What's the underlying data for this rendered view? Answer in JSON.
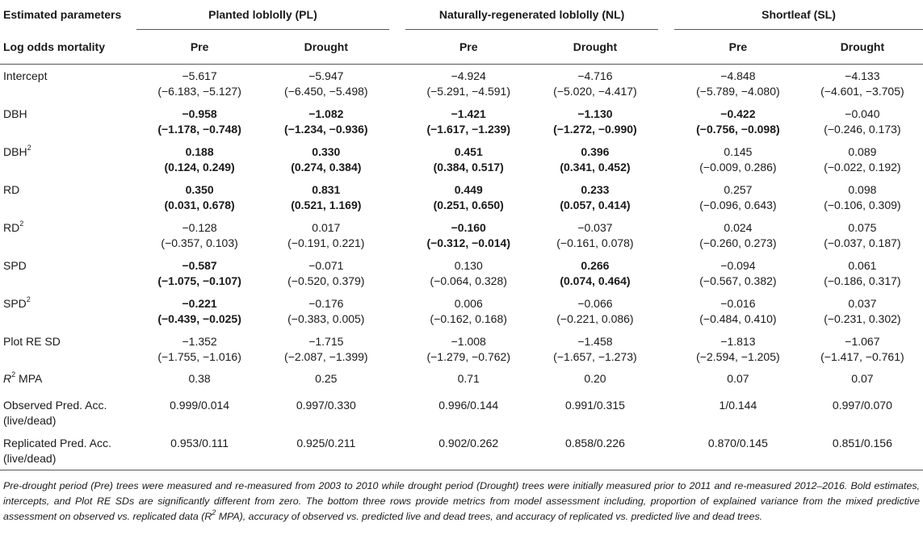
{
  "header": {
    "col0_top": "Estimated parameters",
    "col0_sub": "Log odds mortality",
    "groups": [
      {
        "label": "Planted loblolly (PL)"
      },
      {
        "label": "Naturally-regenerated loblolly (NL)"
      },
      {
        "label": "Shortleaf (SL)"
      }
    ],
    "periods": [
      "Pre",
      "Drought",
      "Pre",
      "Drought",
      "Pre",
      "Drought"
    ]
  },
  "rows": [
    {
      "label": "Intercept",
      "sup": "",
      "cells": [
        {
          "v": "−5.617",
          "ci": "(−6.183, −5.127)"
        },
        {
          "v": "−5.947",
          "ci": "(−6.450, −5.498)"
        },
        {
          "v": "−4.924",
          "ci": "(−5.291, −4.591)"
        },
        {
          "v": "−4.716",
          "ci": "(−5.020, −4.417)"
        },
        {
          "v": "−4.848",
          "ci": "(−5.789, −4.080)"
        },
        {
          "v": "−4.133",
          "ci": "(−4.601, −3.705)"
        }
      ]
    },
    {
      "label": "DBH",
      "sup": "",
      "cells": [
        {
          "v": "−0.958",
          "ci": "(−1.178, −0.748)"
        },
        {
          "v": "−1.082",
          "ci": "(−1.234, −0.936)"
        },
        {
          "v": "−1.421",
          "ci": "(−1.617, −1.239)"
        },
        {
          "v": "−1.130",
          "ci": "(−1.272, −0.990)"
        },
        {
          "v": "−0.422",
          "ci": "(−0.756, −0.098)"
        },
        {
          "v": "−0.040",
          "ci": "(−0.246, 0.173)"
        }
      ]
    },
    {
      "label": "DBH",
      "sup": "2",
      "cells": [
        {
          "v": "0.188",
          "ci": "(0.124, 0.249)"
        },
        {
          "v": "0.330",
          "ci": "(0.274, 0.384)"
        },
        {
          "v": "0.451",
          "ci": "(0.384, 0.517)"
        },
        {
          "v": "0.396",
          "ci": "(0.341, 0.452)"
        },
        {
          "v": "0.145",
          "ci": "(−0.009, 0.286)"
        },
        {
          "v": "0.089",
          "ci": "(−0.022, 0.192)"
        }
      ]
    },
    {
      "label": "RD",
      "sup": "",
      "cells": [
        {
          "v": "0.350",
          "ci": "(0.031, 0.678)"
        },
        {
          "v": "0.831",
          "ci": "(0.521, 1.169)"
        },
        {
          "v": "0.449",
          "ci": "(0.251, 0.650)"
        },
        {
          "v": "0.233",
          "ci": "(0.057, 0.414)"
        },
        {
          "v": "0.257",
          "ci": "(−0.096, 0.643)"
        },
        {
          "v": "0.098",
          "ci": "(−0.106, 0.309)"
        }
      ]
    },
    {
      "label": "RD",
      "sup": "2",
      "cells": [
        {
          "v": "−0.128",
          "ci": "(−0.357, 0.103)"
        },
        {
          "v": "0.017",
          "ci": "(−0.191, 0.221)"
        },
        {
          "v": "−0.160",
          "ci": "(−0.312, −0.014)"
        },
        {
          "v": "−0.037",
          "ci": "(−0.161, 0.078)"
        },
        {
          "v": "0.024",
          "ci": "(−0.260, 0.273)"
        },
        {
          "v": "0.075",
          "ci": "(−0.037, 0.187)"
        }
      ]
    },
    {
      "label": "SPD",
      "sup": "",
      "cells": [
        {
          "v": "−0.587",
          "ci": "(−1.075, −0.107)"
        },
        {
          "v": "−0.071",
          "ci": "(−0.520, 0.379)"
        },
        {
          "v": "0.130",
          "ci": "(−0.064, 0.328)"
        },
        {
          "v": "0.266",
          "ci": "(0.074, 0.464)"
        },
        {
          "v": "−0.094",
          "ci": "(−0.567, 0.382)"
        },
        {
          "v": "0.061",
          "ci": "(−0.186, 0.317)"
        }
      ]
    },
    {
      "label": "SPD",
      "sup": "2",
      "cells": [
        {
          "v": "−0.221",
          "ci": "(−0.439, −0.025)"
        },
        {
          "v": "−0.176",
          "ci": "(−0.383, 0.005)"
        },
        {
          "v": "0.006",
          "ci": "(−0.162, 0.168)"
        },
        {
          "v": "−0.066",
          "ci": "(−0.221, 0.086)"
        },
        {
          "v": "−0.016",
          "ci": "(−0.484, 0.410)"
        },
        {
          "v": "0.037",
          "ci": "(−0.231, 0.302)"
        }
      ]
    },
    {
      "label": "Plot RE SD",
      "sup": "",
      "cells": [
        {
          "v": "−1.352",
          "ci": "(−1.755, −1.016)"
        },
        {
          "v": "−1.715",
          "ci": "(−2.087, −1.399)"
        },
        {
          "v": "−1.008",
          "ci": "(−1.279, −0.762)"
        },
        {
          "v": "−1.458",
          "ci": "(−1.657, −1.273)"
        },
        {
          "v": "−1.813",
          "ci": "(−2.594, −1.205)"
        },
        {
          "v": "−1.067",
          "ci": "(−1.417, −0.761)"
        }
      ]
    }
  ],
  "metrics": [
    {
      "label_a": "R",
      "label_sup": "2",
      "label_b": " MPA",
      "label_line2": "",
      "values": [
        "0.38",
        "0.25",
        "0.71",
        "0.20",
        "0.07",
        "0.07"
      ]
    },
    {
      "label_a": "Observed Pred. Acc.",
      "label_sup": "",
      "label_b": "",
      "label_line2": "(live/dead)",
      "values": [
        "0.999/0.014",
        "0.997/0.330",
        "0.996/0.144",
        "0.991/0.315",
        "1/0.144",
        "0.997/0.070"
      ]
    },
    {
      "label_a": "Replicated Pred. Acc.",
      "label_sup": "",
      "label_b": "",
      "label_line2": "(live/dead)",
      "values": [
        "0.953/0.111",
        "0.925/0.211",
        "0.902/0.262",
        "0.858/0.226",
        "0.870/0.145",
        "0.851/0.156"
      ]
    }
  ],
  "footnote": {
    "part1": "Pre-drought period (Pre) trees were measured and re-measured from 2003 to 2010 while drought period (Drought) trees were initially measured prior to 2011 and re-measured 2012–2016. Bold estimates, intercepts, and Plot RE SDs are significantly different from zero. The bottom three rows provide metrics from model assessment including, proportion of explained variance from the mixed predictive assessment on observed vs. replicated data (R",
    "sup": "2",
    "part2": " MPA), accuracy of observed vs. predicted live and dead trees, and accuracy of replicated vs. predicted live and dead trees."
  }
}
